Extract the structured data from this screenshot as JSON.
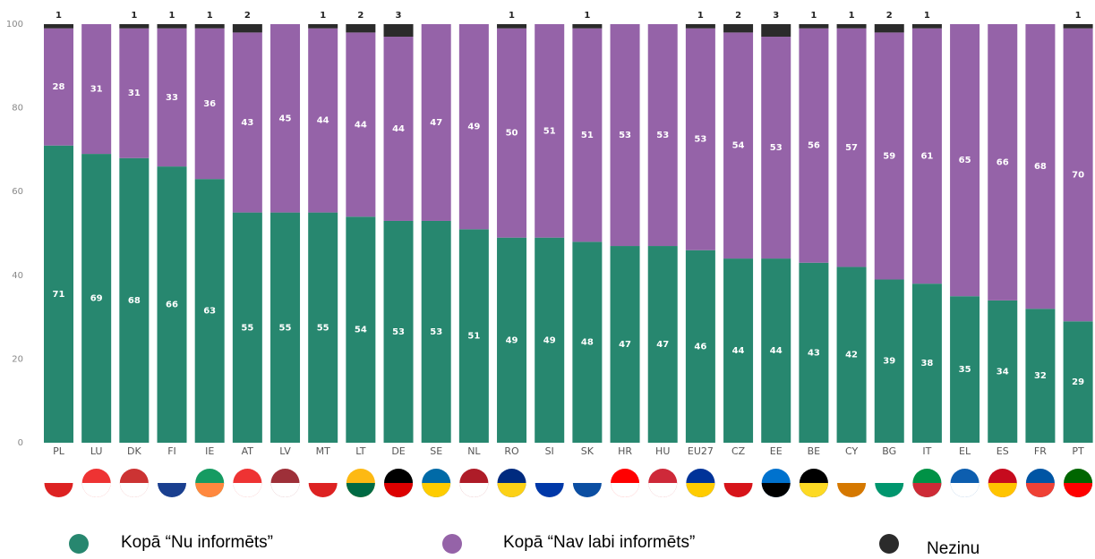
{
  "chart_data": {
    "type": "stacked-bar",
    "categories": [
      "PL",
      "LU",
      "DK",
      "FI",
      "IE",
      "AT",
      "LV",
      "MT",
      "LT",
      "DE",
      "SE",
      "NL",
      "RO",
      "SI",
      "SK",
      "HR",
      "HU",
      "EU27",
      "CZ",
      "EE",
      "BE",
      "CY",
      "BG",
      "IT",
      "EL",
      "ES",
      "FR",
      "PT"
    ],
    "series": [
      {
        "name": "Kopā “Nu informēts”",
        "color": "#27876f",
        "values": [
          71,
          69,
          68,
          66,
          63,
          55,
          55,
          55,
          54,
          53,
          53,
          51,
          49,
          49,
          48,
          47,
          47,
          46,
          44,
          44,
          43,
          42,
          39,
          38,
          35,
          34,
          32,
          29
        ]
      },
      {
        "name": "Kopā “Nav labi informēts”",
        "color": "#9563a8",
        "values": [
          28,
          31,
          31,
          33,
          36,
          43,
          45,
          44,
          44,
          44,
          47,
          49,
          50,
          51,
          51,
          53,
          53,
          53,
          54,
          53,
          56,
          57,
          59,
          61,
          65,
          66,
          68,
          70
        ]
      },
      {
        "name": "Nezinu",
        "color": "#2b2b2b",
        "values": [
          1,
          null,
          1,
          1,
          1,
          2,
          null,
          1,
          2,
          3,
          null,
          null,
          1,
          null,
          1,
          null,
          null,
          1,
          2,
          3,
          1,
          1,
          2,
          1,
          null,
          null,
          null,
          1
        ]
      }
    ],
    "ylim": [
      0,
      100
    ],
    "yticks": [
      0,
      20,
      40,
      60,
      80,
      100
    ]
  }
}
